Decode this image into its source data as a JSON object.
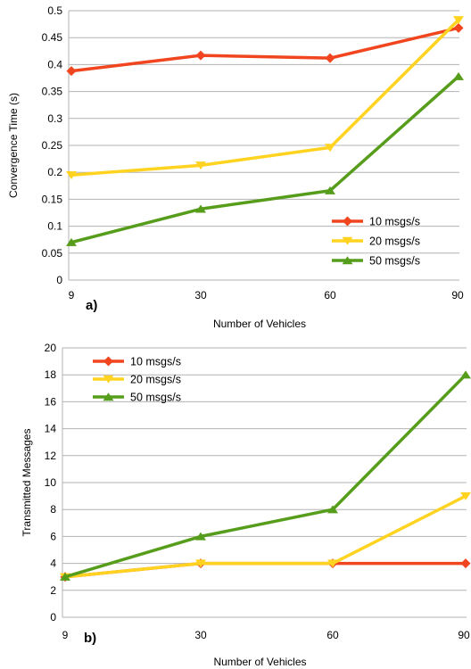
{
  "colors": {
    "s10": "#f0451e",
    "s20": "#ffd320",
    "s50": "#579d1c",
    "grid": "#b3b3b3"
  },
  "chart_data": [
    {
      "type": "line",
      "panel_label": "a)",
      "x": [
        "9",
        "30",
        "60",
        "90"
      ],
      "xlabel": "Number of Vehicles",
      "ylabel": "Convergence Time (s)",
      "ylim": [
        0,
        0.5
      ],
      "yticks": [
        "0",
        "0.05",
        "0.1",
        "0.15",
        "0.2",
        "0.25",
        "0.3",
        "0.35",
        "0.4",
        "0.45",
        "0.5"
      ],
      "grid": "horizontal",
      "legend_position": "bottom-right",
      "series": [
        {
          "name": "10 msgs/s",
          "values": [
            0.388,
            0.417,
            0.412,
            0.468
          ],
          "marker": "diamond"
        },
        {
          "name": "20 msgs/s",
          "values": [
            0.195,
            0.213,
            0.246,
            0.483
          ],
          "marker": "triangle-down"
        },
        {
          "name": "50 msgs/s",
          "values": [
            0.07,
            0.132,
            0.166,
            0.378
          ],
          "marker": "triangle-up"
        }
      ]
    },
    {
      "type": "line",
      "panel_label": "b)",
      "x": [
        "9",
        "30",
        "60",
        "90"
      ],
      "xlabel": "Number of Vehicles",
      "ylabel": "Transmitted Messages",
      "ylim": [
        0,
        20
      ],
      "yticks": [
        "0",
        "2",
        "4",
        "6",
        "8",
        "10",
        "12",
        "14",
        "16",
        "18",
        "20"
      ],
      "grid": "horizontal",
      "legend_position": "top-left",
      "series": [
        {
          "name": "10 msgs/s",
          "values": [
            3,
            4,
            4,
            4
          ],
          "marker": "diamond"
        },
        {
          "name": "20 msgs/s",
          "values": [
            3,
            4,
            4,
            9
          ],
          "marker": "triangle-down"
        },
        {
          "name": "50 msgs/s",
          "values": [
            3,
            6,
            8,
            18
          ],
          "marker": "triangle-up"
        }
      ]
    }
  ]
}
